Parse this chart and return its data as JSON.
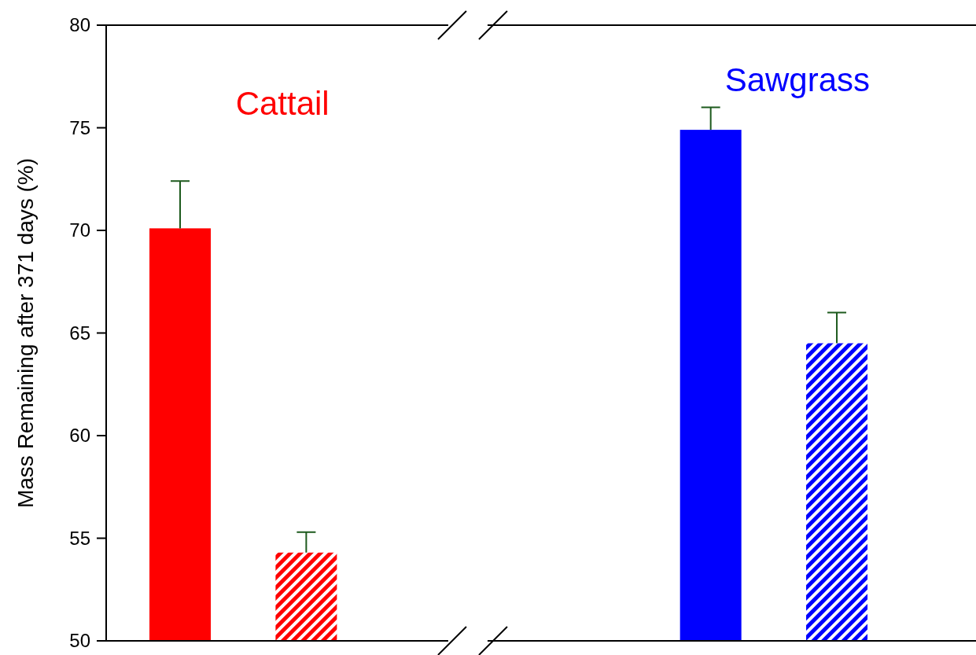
{
  "chart_data": {
    "type": "bar",
    "ylabel": "Mass Remaining  after 371 days (%)",
    "categories": [
      null,
      null,
      null,
      null
    ],
    "values": [
      70.1,
      54.3,
      74.9,
      64.5
    ],
    "colors": [
      "#ff0000",
      "#ff0000",
      "#0000ff",
      "#0000ff"
    ],
    "errors": [
      [
        70.1,
        72.4
      ],
      [
        54.3,
        55.3
      ],
      [
        74.9,
        76.0
      ],
      [
        64.5,
        66.0
      ]
    ],
    "ylim": [
      50,
      80
    ],
    "yticks": [
      50,
      55,
      60,
      65,
      70,
      75,
      80
    ],
    "annotations": [
      "Cattail",
      "Sawgrass"
    ]
  }
}
